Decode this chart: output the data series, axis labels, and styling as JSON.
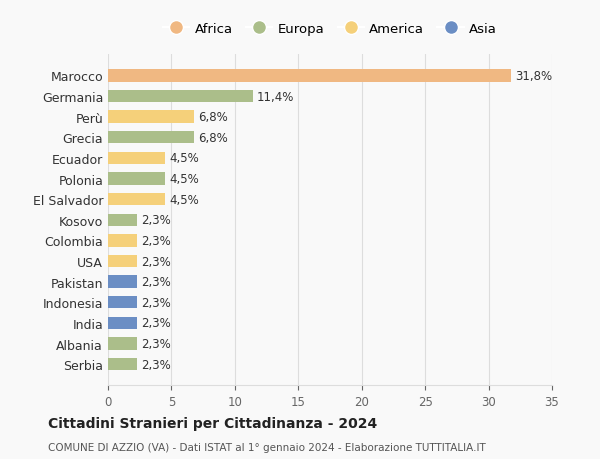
{
  "countries": [
    "Marocco",
    "Germania",
    "Perù",
    "Grecia",
    "Ecuador",
    "Polonia",
    "El Salvador",
    "Kosovo",
    "Colombia",
    "USA",
    "Pakistan",
    "Indonesia",
    "India",
    "Albania",
    "Serbia"
  ],
  "values": [
    31.8,
    11.4,
    6.8,
    6.8,
    4.5,
    4.5,
    4.5,
    2.3,
    2.3,
    2.3,
    2.3,
    2.3,
    2.3,
    2.3,
    2.3
  ],
  "labels": [
    "31,8%",
    "11,4%",
    "6,8%",
    "6,8%",
    "4,5%",
    "4,5%",
    "4,5%",
    "2,3%",
    "2,3%",
    "2,3%",
    "2,3%",
    "2,3%",
    "2,3%",
    "2,3%",
    "2,3%"
  ],
  "continents": [
    "Africa",
    "Europa",
    "America",
    "Europa",
    "America",
    "Europa",
    "America",
    "Europa",
    "America",
    "America",
    "Asia",
    "Asia",
    "Asia",
    "Europa",
    "Europa"
  ],
  "colors": {
    "Africa": "#F0B882",
    "Europa": "#ABBE8A",
    "America": "#F5D07A",
    "Asia": "#6B8EC4"
  },
  "legend_order": [
    "Africa",
    "Europa",
    "America",
    "Asia"
  ],
  "xlim": [
    0,
    35
  ],
  "xticks": [
    0,
    5,
    10,
    15,
    20,
    25,
    30,
    35
  ],
  "title": "Cittadini Stranieri per Cittadinanza - 2024",
  "subtitle": "COMUNE DI AZZIO (VA) - Dati ISTAT al 1° gennaio 2024 - Elaborazione TUTTITALIA.IT",
  "background_color": "#f9f9f9",
  "grid_color": "#dddddd"
}
